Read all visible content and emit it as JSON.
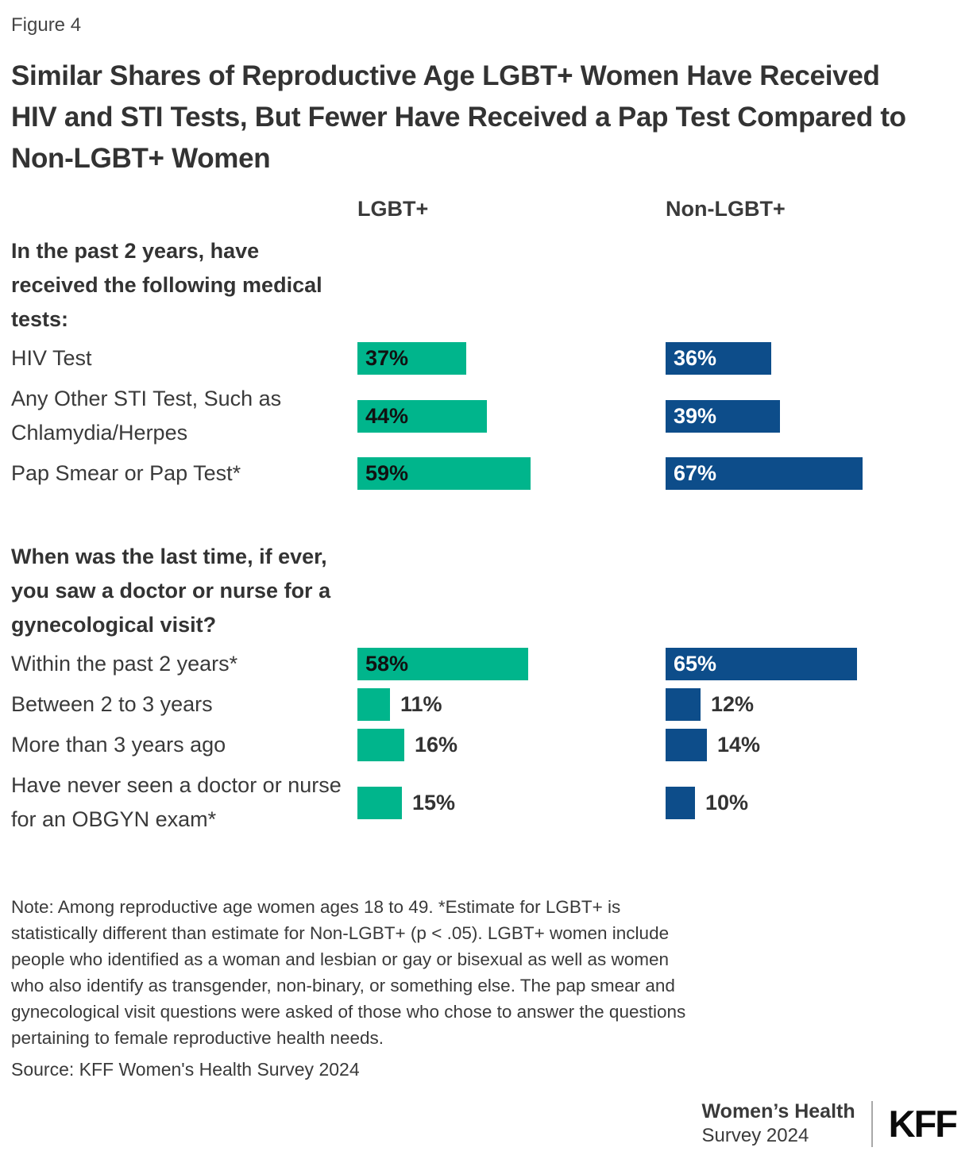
{
  "figure_label": "Figure 4",
  "title": "Similar Shares of Reproductive Age LGBT+ Women Have Received HIV and STI Tests, But Fewer Have Received a Pap Test Compared to Non-LGBT+ Women",
  "columns": {
    "lgbt": "LGBT+",
    "non_lgbt": "Non-LGBT+"
  },
  "chart_data": {
    "type": "bar",
    "orientation": "horizontal",
    "unit": "%",
    "value_range": [
      0,
      100
    ],
    "legend_position": "column-headers-top",
    "grid": false,
    "series_names": [
      "LGBT+",
      "Non-LGBT+"
    ],
    "colors": {
      "lgbt": "#00b58c",
      "non_lgbt": "#0d4d8a"
    },
    "sections": [
      {
        "header": "In the past 2 years, have received the following medical tests:",
        "rows": [
          {
            "label": "HIV Test",
            "values": {
              "lgbt": 37,
              "non_lgbt": 36
            }
          },
          {
            "label": "Any Other STI Test, Such as Chlamydia/Herpes",
            "values": {
              "lgbt": 44,
              "non_lgbt": 39
            }
          },
          {
            "label": "Pap Smear or Pap Test*",
            "values": {
              "lgbt": 59,
              "non_lgbt": 67
            }
          }
        ]
      },
      {
        "header": "When was the last time, if ever, you saw a doctor or nurse for a gynecological visit?",
        "rows": [
          {
            "label": "Within the past 2 years*",
            "values": {
              "lgbt": 58,
              "non_lgbt": 65
            }
          },
          {
            "label": "Between 2 to 3 years",
            "values": {
              "lgbt": 11,
              "non_lgbt": 12
            }
          },
          {
            "label": "More than 3 years ago",
            "values": {
              "lgbt": 16,
              "non_lgbt": 14
            }
          },
          {
            "label": "Have never seen a doctor or nurse for an OBGYN exam*",
            "values": {
              "lgbt": 15,
              "non_lgbt": 10
            }
          }
        ]
      }
    ]
  },
  "note": "Note: Among reproductive age women ages 18 to 49. *Estimate for LGBT+ is statistically different than estimate for Non-LGBT+ (p < .05). LGBT+ women include people who identified as a woman and lesbian or gay or bisexual as well as women who also identify as transgender, non-binary, or something else. The pap smear and gynecological visit questions were asked of those who chose to answer the questions pertaining to female reproductive health needs.",
  "source": "Source: KFF Women's Health Survey 2024",
  "footer": {
    "program_line1": "Women’s Health",
    "program_line2": "Survey 2024",
    "logo": "KFF"
  }
}
